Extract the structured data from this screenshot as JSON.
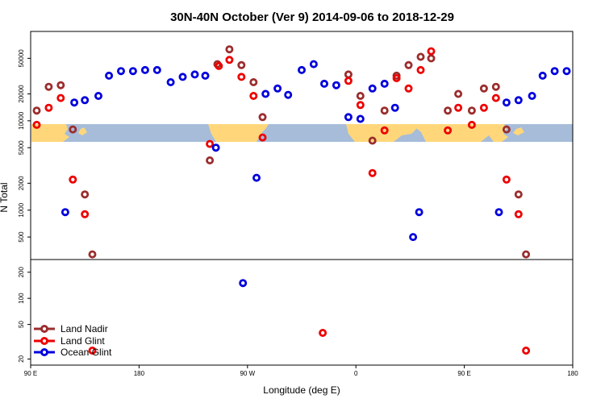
{
  "colors": {
    "land_nadir": "#9b2d2d",
    "land_glint": "#ee0000",
    "ocean_glint": "#0000dd",
    "map_ocean": "#a6bcd9",
    "map_land": "#ffd77a"
  },
  "chart_data": {
    "type": "scatter",
    "title": "30N-40N October (Ver 9)   2014-09-06 to 2018-12-29",
    "xlabel": "Longitude (deg E)",
    "ylabel": "N Total",
    "xlim": [
      0,
      360
    ],
    "x_ticks": [
      {
        "value": 0,
        "label": "90 E"
      },
      {
        "value": 72,
        "label": "180"
      },
      {
        "value": 144,
        "label": "90 W"
      },
      {
        "value": 216,
        "label": "0"
      },
      {
        "value": 288,
        "label": "90 E"
      },
      {
        "value": 360,
        "label": "180"
      }
    ],
    "upper_panel": {
      "scale": "log",
      "ylim": [
        280,
        100000
      ],
      "y_ticks": [
        500,
        1000,
        2000,
        5000,
        10000,
        20000,
        50000
      ]
    },
    "lower_panel": {
      "scale": "log",
      "ylim": [
        17,
        280
      ],
      "y_ticks": [
        20,
        50,
        100,
        200
      ]
    },
    "series": [
      {
        "name": "Land Nadir",
        "color_key": "land_nadir",
        "points": [
          {
            "x": 4,
            "y": 13000
          },
          {
            "x": 12,
            "y": 24000
          },
          {
            "x": 20,
            "y": 25000
          },
          {
            "x": 28,
            "y": 8000
          },
          {
            "x": 36,
            "y": 1500
          },
          {
            "x": 41,
            "y": 320
          },
          {
            "x": 119,
            "y": 3600
          },
          {
            "x": 124,
            "y": 43000
          },
          {
            "x": 132,
            "y": 63000
          },
          {
            "x": 140,
            "y": 42000
          },
          {
            "x": 148,
            "y": 27000
          },
          {
            "x": 154,
            "y": 11000
          },
          {
            "x": 211,
            "y": 33000
          },
          {
            "x": 219,
            "y": 19000
          },
          {
            "x": 227,
            "y": 6000
          },
          {
            "x": 235,
            "y": 13000
          },
          {
            "x": 243,
            "y": 32000
          },
          {
            "x": 251,
            "y": 42000
          },
          {
            "x": 259,
            "y": 52000
          },
          {
            "x": 266,
            "y": 50000
          },
          {
            "x": 277,
            "y": 13000
          },
          {
            "x": 284,
            "y": 20000
          },
          {
            "x": 293,
            "y": 13000
          },
          {
            "x": 301,
            "y": 23000
          },
          {
            "x": 309,
            "y": 24000
          },
          {
            "x": 316,
            "y": 8000
          },
          {
            "x": 324,
            "y": 1500
          },
          {
            "x": 329,
            "y": 320
          }
        ]
      },
      {
        "name": "Land Glint",
        "color_key": "land_glint",
        "points": [
          {
            "x": 4,
            "y": 9000
          },
          {
            "x": 12,
            "y": 14000
          },
          {
            "x": 20,
            "y": 18000
          },
          {
            "x": 28,
            "y": 2200
          },
          {
            "x": 36,
            "y": 900
          },
          {
            "x": 41,
            "y": 25
          },
          {
            "x": 119,
            "y": 5500
          },
          {
            "x": 125,
            "y": 41000
          },
          {
            "x": 132,
            "y": 48000
          },
          {
            "x": 140,
            "y": 31000
          },
          {
            "x": 148,
            "y": 19000
          },
          {
            "x": 154,
            "y": 6500
          },
          {
            "x": 194,
            "y": 40
          },
          {
            "x": 211,
            "y": 28000
          },
          {
            "x": 219,
            "y": 15000
          },
          {
            "x": 227,
            "y": 2600
          },
          {
            "x": 235,
            "y": 7800
          },
          {
            "x": 243,
            "y": 30000
          },
          {
            "x": 251,
            "y": 23000
          },
          {
            "x": 259,
            "y": 37000
          },
          {
            "x": 266,
            "y": 60000
          },
          {
            "x": 277,
            "y": 7800
          },
          {
            "x": 284,
            "y": 14000
          },
          {
            "x": 293,
            "y": 9000
          },
          {
            "x": 301,
            "y": 14000
          },
          {
            "x": 309,
            "y": 18000
          },
          {
            "x": 316,
            "y": 2200
          },
          {
            "x": 324,
            "y": 900
          },
          {
            "x": 329,
            "y": 25
          }
        ]
      },
      {
        "name": "Ocean Glint",
        "color_key": "ocean_glint",
        "points": [
          {
            "x": 23,
            "y": 950
          },
          {
            "x": 29,
            "y": 16000
          },
          {
            "x": 36,
            "y": 17000
          },
          {
            "x": 45,
            "y": 19000
          },
          {
            "x": 52,
            "y": 32000
          },
          {
            "x": 60,
            "y": 36000
          },
          {
            "x": 68,
            "y": 36000
          },
          {
            "x": 76,
            "y": 37000
          },
          {
            "x": 84,
            "y": 37000
          },
          {
            "x": 93,
            "y": 27000
          },
          {
            "x": 101,
            "y": 31000
          },
          {
            "x": 109,
            "y": 33000
          },
          {
            "x": 116,
            "y": 32000
          },
          {
            "x": 123,
            "y": 5000
          },
          {
            "x": 141,
            "y": 150
          },
          {
            "x": 150,
            "y": 2300
          },
          {
            "x": 156,
            "y": 20000
          },
          {
            "x": 164,
            "y": 23000
          },
          {
            "x": 171,
            "y": 19500
          },
          {
            "x": 180,
            "y": 37000
          },
          {
            "x": 188,
            "y": 43000
          },
          {
            "x": 195,
            "y": 26000
          },
          {
            "x": 203,
            "y": 25000
          },
          {
            "x": 211,
            "y": 11000
          },
          {
            "x": 219,
            "y": 10500
          },
          {
            "x": 227,
            "y": 23000
          },
          {
            "x": 235,
            "y": 26000
          },
          {
            "x": 242,
            "y": 14000
          },
          {
            "x": 254,
            "y": 500
          },
          {
            "x": 258,
            "y": 950
          },
          {
            "x": 311,
            "y": 950
          },
          {
            "x": 316,
            "y": 16000
          },
          {
            "x": 324,
            "y": 17000
          },
          {
            "x": 333,
            "y": 19000
          },
          {
            "x": 340,
            "y": 32000
          },
          {
            "x": 348,
            "y": 36000
          },
          {
            "x": 356,
            "y": 36000
          }
        ]
      }
    ],
    "legend": {
      "position": "bottom-left",
      "entries": [
        "Land Nadir",
        "Land Glint",
        "Ocean Glint"
      ]
    }
  }
}
